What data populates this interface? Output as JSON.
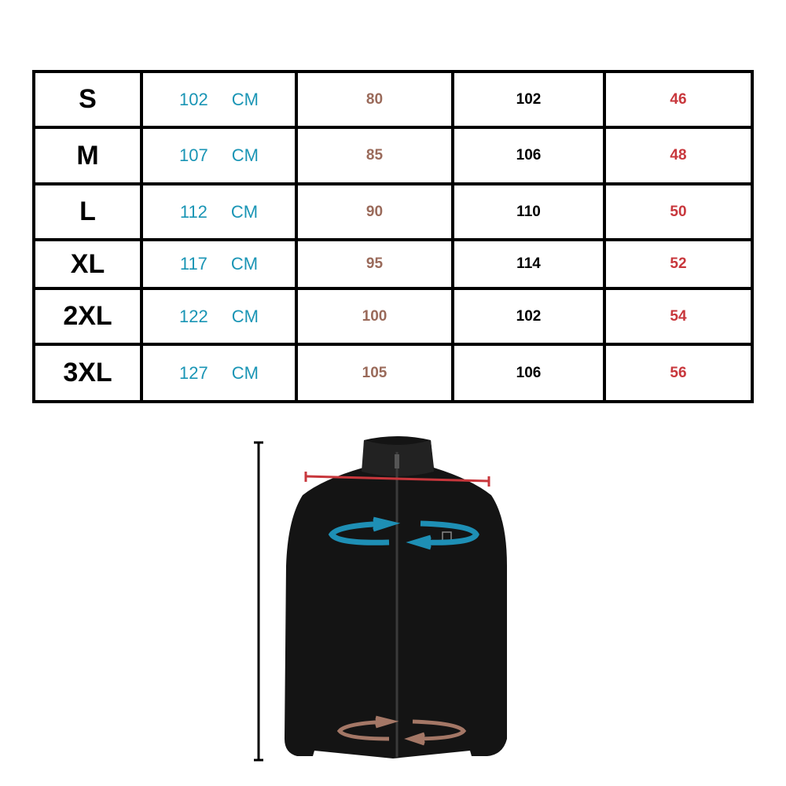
{
  "size_chart": {
    "unit": "CM",
    "rows": [
      {
        "size": "S",
        "chest": "102",
        "hem": "80",
        "length": "102",
        "shoulder": "46"
      },
      {
        "size": "M",
        "chest": "107",
        "hem": "85",
        "length": "106",
        "shoulder": "48"
      },
      {
        "size": "L",
        "chest": "112",
        "hem": "90",
        "length": "110",
        "shoulder": "50"
      },
      {
        "size": "XL",
        "chest": "117",
        "hem": "95",
        "length": "114",
        "shoulder": "52"
      },
      {
        "size": "2XL",
        "chest": "122",
        "hem": "100",
        "length": "102",
        "shoulder": "54"
      },
      {
        "size": "3XL",
        "chest": "127",
        "hem": "105",
        "length": "106",
        "shoulder": "56"
      }
    ]
  },
  "colors": {
    "chest": "#1a95b5",
    "hem": "#9a6a5a",
    "length": "#000000",
    "shoulder": "#c8373c"
  },
  "figure": {
    "image": "black fleece jacket with measurement guides",
    "icons": [
      "length-line-icon",
      "shoulder-line-icon",
      "chest-arrows-icon",
      "hem-arrows-icon"
    ]
  }
}
